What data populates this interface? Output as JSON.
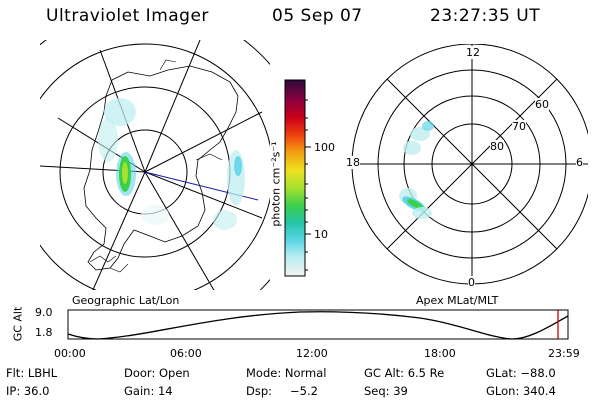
{
  "header": {
    "instrument": "Ultraviolet Imager",
    "date": "05 Sep 07",
    "time": "23:27:35 UT"
  },
  "colorbar": {
    "unit": "photon cm⁻²s⁻¹",
    "ticks": [
      "100",
      "10"
    ],
    "colors": [
      "#f2f2f2",
      "#bfeef0",
      "#5fd6e8",
      "#22c4a8",
      "#3ccf4a",
      "#a6e22e",
      "#f0e020",
      "#f2a010",
      "#ee4010",
      "#c80018",
      "#8a0040",
      "#2b0a3d"
    ]
  },
  "geo_map": {
    "label": "Geographic Lat/Lon"
  },
  "polar_map": {
    "label": "Apex MLat/MLT",
    "mlt_labels": {
      "top": "12",
      "right": "6",
      "bottom": "0",
      "left": "18"
    },
    "lat_labels": [
      "60",
      "70",
      "80"
    ]
  },
  "altitude_plot": {
    "ylabel": "GC Alt",
    "yticks": [
      "9.0",
      "1.8"
    ],
    "xticks": [
      "00:00",
      "06:00",
      "12:00",
      "18:00",
      "23:59"
    ],
    "current_marker_color": "#cc0000"
  },
  "status": {
    "row1": {
      "flt": "Flt: LBHL",
      "door": "Door: Open",
      "mode": "Mode: Normal",
      "gc_alt": "GC Alt: 6.5 Re",
      "glat": "GLat: −88.0"
    },
    "row2": {
      "ip": "IP: 36.0",
      "gain": "Gain: 14",
      "dsp_label": "Dsp:",
      "dsp_value": "−5.2",
      "seq": "Seq: 39",
      "glon": "GLon: 340.4"
    }
  }
}
